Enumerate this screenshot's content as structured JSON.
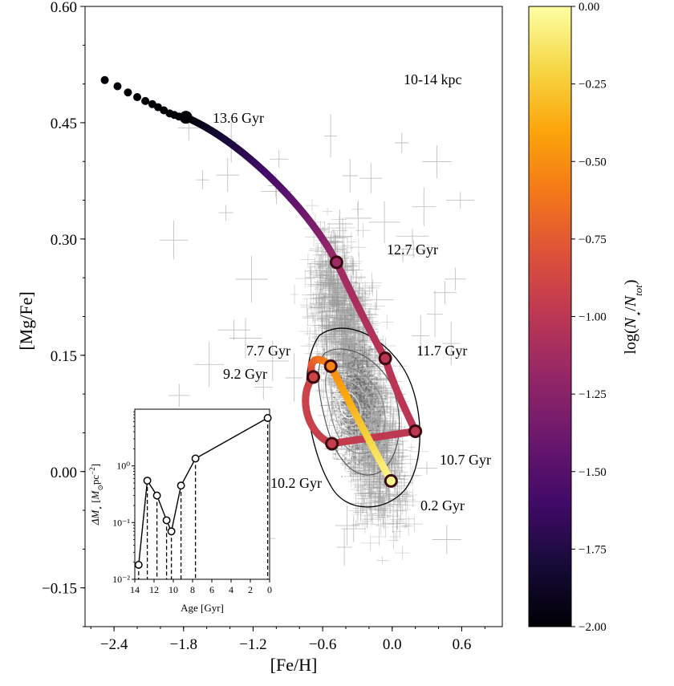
{
  "chart_data": {
    "type": "scatter",
    "main": {
      "xlabel": "[Fe/H]",
      "ylabel": "[Mg/Fe]",
      "xlim": [
        -2.65,
        0.95
      ],
      "ylim": [
        -0.2,
        0.6
      ],
      "xticks": [
        -2.4,
        -1.8,
        -1.2,
        -0.6,
        0.0,
        0.6
      ],
      "xtick_labels": [
        "−2.4",
        "−1.8",
        "−1.2",
        "−0.6",
        "0.0",
        "0.6"
      ],
      "yticks": [
        0.6,
        0.45,
        0.3,
        0.15,
        0.0,
        -0.15
      ],
      "ytick_labels": [
        "0.60",
        "0.45",
        "0.30",
        "0.15",
        "0.00",
        "−0.15"
      ],
      "region_label": "10-14 kpc",
      "track": [
        {
          "age": "13.6 Gyr",
          "feh": -1.78,
          "mgfe": 0.457,
          "logn": -2.0
        },
        {
          "age": "12.7 Gyr",
          "feh": -0.48,
          "mgfe": 0.27,
          "logn": -1.15
        },
        {
          "age": "11.7 Gyr",
          "feh": -0.06,
          "mgfe": 0.146,
          "logn": -1.02
        },
        {
          "age": "10.7 Gyr",
          "feh": 0.2,
          "mgfe": 0.052,
          "logn": -1.0
        },
        {
          "age": "10.2 Gyr",
          "feh": -0.52,
          "mgfe": 0.036,
          "logn": -0.95
        },
        {
          "age": "9.2 Gyr",
          "feh": -0.68,
          "mgfe": 0.122,
          "logn": -0.9
        },
        {
          "age": "7.7 Gyr",
          "feh": -0.53,
          "mgfe": 0.136,
          "logn": -0.55
        },
        {
          "age": "0.2 Gyr",
          "feh": -0.01,
          "mgfe": -0.012,
          "logn": -0.05
        }
      ],
      "early_points": [
        {
          "feh": -2.48,
          "mgfe": 0.505
        },
        {
          "feh": -2.37,
          "mgfe": 0.497
        },
        {
          "feh": -2.28,
          "mgfe": 0.489
        },
        {
          "feh": -2.2,
          "mgfe": 0.483
        },
        {
          "feh": -2.13,
          "mgfe": 0.478
        },
        {
          "feh": -2.07,
          "mgfe": 0.474
        },
        {
          "feh": -2.02,
          "mgfe": 0.47
        },
        {
          "feh": -1.97,
          "mgfe": 0.466
        },
        {
          "feh": -1.92,
          "mgfe": 0.462
        },
        {
          "feh": -1.88,
          "mgfe": 0.46
        },
        {
          "feh": -1.84,
          "mgfe": 0.458
        }
      ],
      "scatter": {
        "center_feh": -0.3,
        "center_mgfe": 0.09,
        "approx_count": 2000,
        "outliers": 60
      }
    },
    "inset": {
      "type": "line",
      "xlabel": "Age [Gyr]",
      "ylabel": "ΔM⋆ [M⊙pc⁻²]",
      "xlim": [
        14,
        0
      ],
      "ylim": [
        0.01,
        10
      ],
      "yscale": "log",
      "xticks": [
        14,
        12,
        10,
        8,
        6,
        4,
        2,
        0
      ],
      "xtick_labels": [
        "14",
        "12",
        "10",
        "8",
        "6",
        "4",
        "2",
        "0"
      ],
      "ytick_labels": [
        "10⁰",
        "10⁻¹",
        "10⁻²"
      ],
      "points": [
        {
          "age": 13.6,
          "dm": 0.018
        },
        {
          "age": 12.7,
          "dm": 0.55
        },
        {
          "age": 11.7,
          "dm": 0.3
        },
        {
          "age": 10.7,
          "dm": 0.11
        },
        {
          "age": 10.2,
          "dm": 0.07
        },
        {
          "age": 9.2,
          "dm": 0.45
        },
        {
          "age": 7.7,
          "dm": 1.35
        },
        {
          "age": 0.2,
          "dm": 7.0
        }
      ]
    },
    "colorbar": {
      "label": "log(N⋆/Ntot)",
      "range": [
        -2.0,
        0.0
      ],
      "ticks": [
        0.0,
        -0.25,
        -0.5,
        -0.75,
        -1.0,
        -1.25,
        -1.5,
        -1.75,
        -2.0
      ],
      "tick_labels": [
        "0.00",
        "−0.25",
        "−0.50",
        "−0.75",
        "−1.00",
        "−1.25",
        "−1.50",
        "−1.75",
        "−2.00"
      ],
      "colormap": "inferno"
    }
  }
}
